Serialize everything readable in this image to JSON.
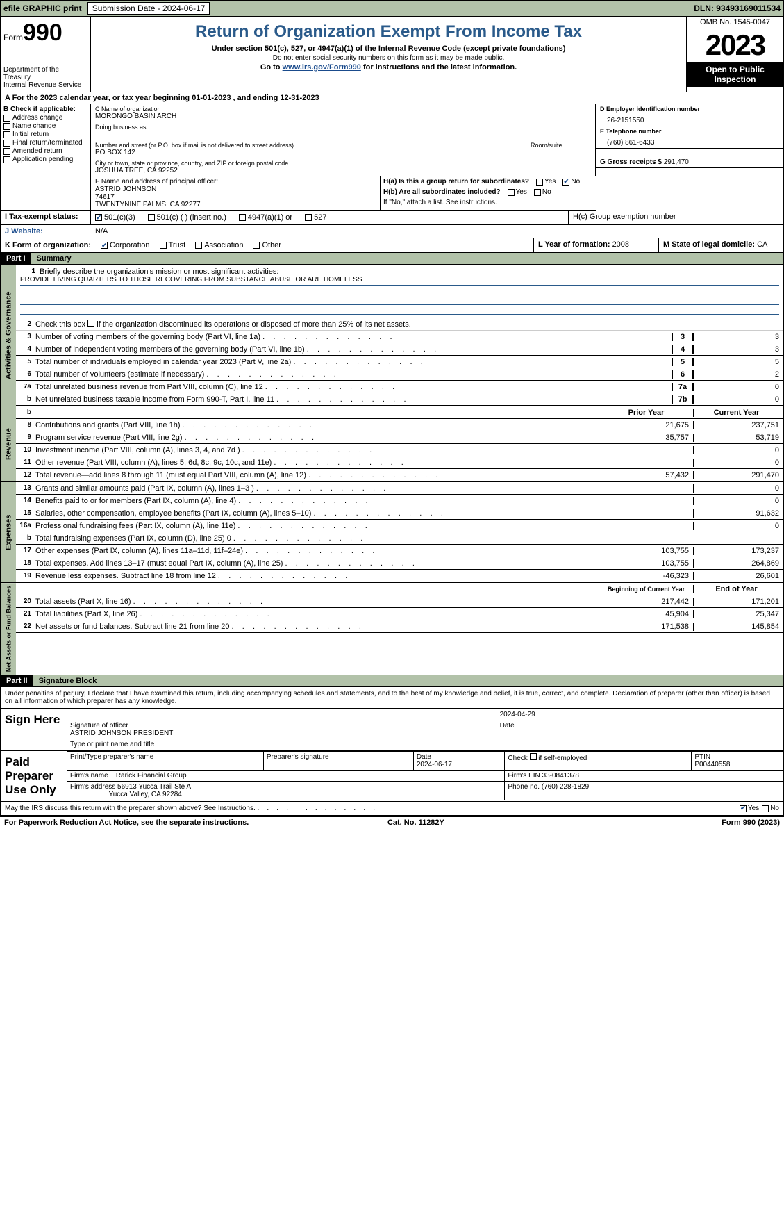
{
  "topbar": {
    "efile": "efile GRAPHIC print",
    "sub_lbl": "Submission Date - 2024-06-17",
    "dln": "DLN: 93493169011534"
  },
  "header": {
    "form_word": "Form",
    "form_num": "990",
    "dept": "Department of the Treasury",
    "irs": "Internal Revenue Service",
    "title": "Return of Organization Exempt From Income Tax",
    "sub": "Under section 501(c), 527, or 4947(a)(1) of the Internal Revenue Code (except private foundations)",
    "note1": "Do not enter social security numbers on this form as it may be made public.",
    "note2_pre": "Go to ",
    "note2_link": "www.irs.gov/Form990",
    "note2_post": " for instructions and the latest information.",
    "omb": "OMB No. 1545-0047",
    "year": "2023",
    "open": "Open to Public Inspection"
  },
  "rowA": "A  For the 2023 calendar year, or tax year beginning 01-01-2023    , and ending 12-31-2023",
  "boxB": {
    "title": "B Check if applicable:",
    "items": [
      "Address change",
      "Name change",
      "Initial return",
      "Final return/terminated",
      "Amended return",
      "Application pending"
    ]
  },
  "boxC": {
    "name_lbl": "C Name of organization",
    "name": "MORONGO BASIN ARCH",
    "dba_lbl": "Doing business as",
    "addr_lbl": "Number and street (or P.O. box if mail is not delivered to street address)",
    "room_lbl": "Room/suite",
    "addr": "PO BOX 142",
    "city_lbl": "City or town, state or province, country, and ZIP or foreign postal code",
    "city": "JOSHUA TREE, CA  92252",
    "officer_lbl": "F  Name and address of principal officer:",
    "officer": "ASTRID JOHNSON",
    "officer_addr1": "74617",
    "officer_addr2": "TWENTYNINE PALMS, CA  92277"
  },
  "boxD": {
    "ein_lbl": "D Employer identification number",
    "ein": "26-2151550",
    "phone_lbl": "E Telephone number",
    "phone": "(760) 861-6433",
    "gross_lbl": "G Gross receipts $ ",
    "gross": "291,470"
  },
  "boxH": {
    "ha": "H(a)  Is this a group return for subordinates?",
    "hb": "H(b)  Are all subordinates included?",
    "hb_note": "If \"No,\" attach a list. See instructions.",
    "hc": "H(c)  Group exemption number",
    "yes": "Yes",
    "no": "No"
  },
  "rowI": {
    "lbl": "I    Tax-exempt status:",
    "opts": [
      "501(c)(3)",
      "501(c) (  ) (insert no.)",
      "4947(a)(1) or",
      "527"
    ]
  },
  "rowJ": {
    "lbl": "J    Website:",
    "val": "N/A"
  },
  "rowK": {
    "lbl": "K Form of organization:",
    "opts": [
      "Corporation",
      "Trust",
      "Association",
      "Other"
    ],
    "l_lbl": "L Year of formation: ",
    "l_val": "2008",
    "m_lbl": "M State of legal domicile: ",
    "m_val": "CA"
  },
  "part1": {
    "hdr": "Part I",
    "title": "Summary"
  },
  "governance": {
    "tab": "Activities & Governance",
    "l1": "Briefly describe the organization's mission or most significant activities:",
    "mission": "PROVIDE LIVING QUARTERS TO THOSE RECOVERING FROM SUBSTANCE ABUSE OR ARE HOMELESS",
    "l2": "Check this box       if the organization discontinued its operations or disposed of more than 25% of its net assets.",
    "rows": [
      {
        "n": "3",
        "t": "Number of voting members of the governing body (Part VI, line 1a)",
        "b": "3",
        "v": "3"
      },
      {
        "n": "4",
        "t": "Number of independent voting members of the governing body (Part VI, line 1b)",
        "b": "4",
        "v": "3"
      },
      {
        "n": "5",
        "t": "Total number of individuals employed in calendar year 2023 (Part V, line 2a)",
        "b": "5",
        "v": "5"
      },
      {
        "n": "6",
        "t": "Total number of volunteers (estimate if necessary)",
        "b": "6",
        "v": "2"
      },
      {
        "n": "7a",
        "t": "Total unrelated business revenue from Part VIII, column (C), line 12",
        "b": "7a",
        "v": "0"
      },
      {
        "n": "b",
        "t": "Net unrelated business taxable income from Form 990-T, Part I, line 11",
        "b": "7b",
        "v": "0"
      }
    ]
  },
  "revenue": {
    "tab": "Revenue",
    "hdr_prior": "Prior Year",
    "hdr_curr": "Current Year",
    "rows": [
      {
        "n": "8",
        "t": "Contributions and grants (Part VIII, line 1h)",
        "p": "21,675",
        "c": "237,751"
      },
      {
        "n": "9",
        "t": "Program service revenue (Part VIII, line 2g)",
        "p": "35,757",
        "c": "53,719"
      },
      {
        "n": "10",
        "t": "Investment income (Part VIII, column (A), lines 3, 4, and 7d )",
        "p": "",
        "c": "0"
      },
      {
        "n": "11",
        "t": "Other revenue (Part VIII, column (A), lines 5, 6d, 8c, 9c, 10c, and 11e)",
        "p": "",
        "c": "0"
      },
      {
        "n": "12",
        "t": "Total revenue—add lines 8 through 11 (must equal Part VIII, column (A), line 12)",
        "p": "57,432",
        "c": "291,470"
      }
    ]
  },
  "expenses": {
    "tab": "Expenses",
    "rows": [
      {
        "n": "13",
        "t": "Grants and similar amounts paid (Part IX, column (A), lines 1–3 )",
        "p": "",
        "c": "0"
      },
      {
        "n": "14",
        "t": "Benefits paid to or for members (Part IX, column (A), line 4)",
        "p": "",
        "c": "0"
      },
      {
        "n": "15",
        "t": "Salaries, other compensation, employee benefits (Part IX, column (A), lines 5–10)",
        "p": "",
        "c": "91,632"
      },
      {
        "n": "16a",
        "t": "Professional fundraising fees (Part IX, column (A), line 11e)",
        "p": "",
        "c": "0"
      },
      {
        "n": "b",
        "t": "Total fundraising expenses (Part IX, column (D), line 25) 0",
        "p": "shade",
        "c": "shade"
      },
      {
        "n": "17",
        "t": "Other expenses (Part IX, column (A), lines 11a–11d, 11f–24e)",
        "p": "103,755",
        "c": "173,237"
      },
      {
        "n": "18",
        "t": "Total expenses. Add lines 13–17 (must equal Part IX, column (A), line 25)",
        "p": "103,755",
        "c": "264,869"
      },
      {
        "n": "19",
        "t": "Revenue less expenses. Subtract line 18 from line 12",
        "p": "-46,323",
        "c": "26,601"
      }
    ]
  },
  "net": {
    "tab": "Net Assets or Fund Balances",
    "hdr_beg": "Beginning of Current Year",
    "hdr_end": "End of Year",
    "rows": [
      {
        "n": "20",
        "t": "Total assets (Part X, line 16)",
        "p": "217,442",
        "c": "171,201"
      },
      {
        "n": "21",
        "t": "Total liabilities (Part X, line 26)",
        "p": "45,904",
        "c": "25,347"
      },
      {
        "n": "22",
        "t": "Net assets or fund balances. Subtract line 21 from line 20",
        "p": "171,538",
        "c": "145,854"
      }
    ]
  },
  "part2": {
    "hdr": "Part II",
    "title": "Signature Block"
  },
  "perjury": "Under penalties of perjury, I declare that I have examined this return, including accompanying schedules and statements, and to the best of my knowledge and belief, it is true, correct, and complete. Declaration of preparer (other than officer) is based on all information of which preparer has any knowledge.",
  "sign": {
    "lbl": "Sign Here",
    "date": "2024-04-29",
    "sig_lbl": "Signature of officer",
    "name": "ASTRID JOHNSON  PRESIDENT",
    "type_lbl": "Type or print name and title",
    "date_lbl": "Date"
  },
  "paid": {
    "lbl": "Paid Preparer Use Only",
    "h1": "Print/Type preparer's name",
    "h2": "Preparer's signature",
    "h3": "Date",
    "date": "2024-06-17",
    "h4": "Check        if self-employed",
    "h5": "PTIN",
    "ptin": "P00440558",
    "firm_lbl": "Firm's name",
    "firm": "Rarick Financial Group",
    "ein_lbl": "Firm's EIN ",
    "ein": "33-0841378",
    "addr_lbl": "Firm's address ",
    "addr1": "56913 Yucca Trail Ste A",
    "addr2": "Yucca Valley, CA  92284",
    "ph_lbl": "Phone no. ",
    "ph": "(760) 228-1829"
  },
  "discuss": "May the IRS discuss this return with the preparer shown above? See Instructions.",
  "footer": {
    "pra": "For Paperwork Reduction Act Notice, see the separate instructions.",
    "cat": "Cat. No. 11282Y",
    "form": "Form 990 (2023)"
  }
}
